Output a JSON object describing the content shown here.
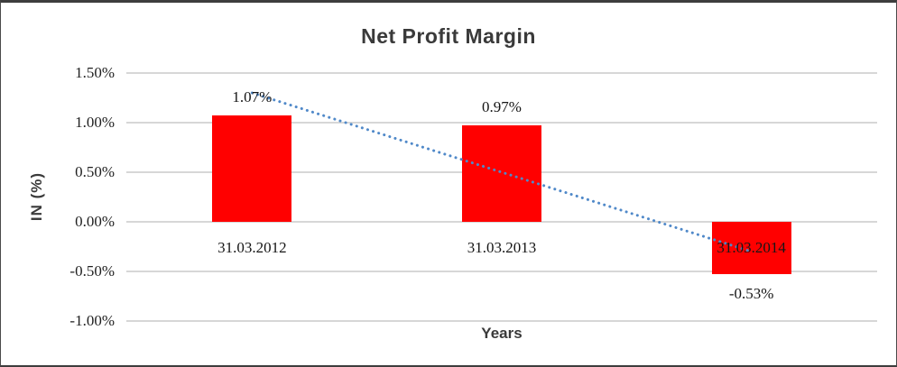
{
  "chart_data": {
    "type": "bar",
    "title": "Net Profit Margin",
    "xlabel": "Years",
    "ylabel": "IN (%)",
    "categories": [
      "31.03.2012",
      "31.03.2013",
      "31.03.2014"
    ],
    "values": [
      1.07,
      0.97,
      -0.53
    ],
    "data_labels": [
      "1.07%",
      "0.97%",
      "-0.53%"
    ],
    "y_ticks": [
      "1.50%",
      "1.00%",
      "0.50%",
      "0.00%",
      "-0.50%",
      "-1.00%"
    ],
    "ylim": [
      -1.0,
      1.5
    ],
    "grid": true,
    "legend": "none",
    "bar_color": "#FF0000",
    "gridline_color": "#D7D7D7",
    "label_color": "#161616",
    "title_color": "#3A3A3A",
    "trendline": {
      "type": "linear",
      "style": "dotted",
      "color": "#5089C9",
      "start_value": 1.3,
      "end_value": -0.3
    }
  }
}
